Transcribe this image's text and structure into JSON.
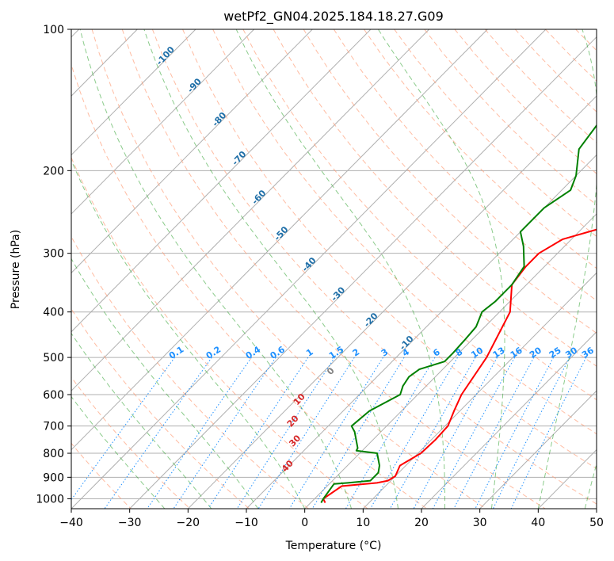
{
  "chart_data": {
    "type": "line",
    "title": "wetPf2_GN04.2025.184.18.27.G09",
    "xlabel": "Temperature (°C)",
    "ylabel": "Pressure (hPa)",
    "xlim": [
      -40,
      50
    ],
    "ylim": [
      1050,
      100
    ],
    "y_scale": "log",
    "x_ticks": [
      -40,
      -30,
      -20,
      -10,
      0,
      10,
      20,
      30,
      40,
      50
    ],
    "y_ticks": [
      100,
      200,
      300,
      400,
      500,
      600,
      700,
      800,
      900,
      1000
    ],
    "grid": true,
    "series": [
      {
        "name": "",
        "color": "#ff0000",
        "points": [
          [
            2.5,
            1020
          ],
          [
            1.5,
            1000
          ],
          [
            2.5,
            940
          ],
          [
            8,
            925
          ],
          [
            9.5,
            915
          ],
          [
            10,
            895
          ],
          [
            9,
            850
          ],
          [
            10.5,
            800
          ],
          [
            10.7,
            750
          ],
          [
            10.5,
            700
          ],
          [
            9,
            650
          ],
          [
            7.5,
            600
          ],
          [
            5.5,
            500
          ],
          [
            1.8,
            400
          ],
          [
            -2.5,
            350
          ],
          [
            -3.2,
            320
          ],
          [
            -3.2,
            300
          ],
          [
            -1.5,
            280
          ],
          [
            5,
            260
          ],
          [
            10,
            240
          ],
          [
            14,
            220
          ],
          [
            18,
            200
          ],
          [
            25,
            170
          ],
          [
            32,
            140
          ],
          [
            38,
            120
          ],
          [
            44,
            100
          ]
        ]
      },
      {
        "name": "",
        "color": "#008000",
        "points": [
          [
            1.8,
            1020
          ],
          [
            1.5,
            1000
          ],
          [
            0.8,
            930
          ],
          [
            3,
            925
          ],
          [
            6.5,
            915
          ],
          [
            6.5,
            880
          ],
          [
            5.5,
            850
          ],
          [
            3,
            800
          ],
          [
            -1,
            790
          ],
          [
            -1.2,
            780
          ],
          [
            -4.5,
            720
          ],
          [
            -6,
            700
          ],
          [
            -5.5,
            650
          ],
          [
            -3,
            600
          ],
          [
            -4,
            575
          ],
          [
            -4.5,
            550
          ],
          [
            -4,
            530
          ],
          [
            -1,
            510
          ],
          [
            -1,
            490
          ],
          [
            -1.2,
            460
          ],
          [
            -1.5,
            430
          ],
          [
            -3,
            400
          ],
          [
            -2.5,
            380
          ],
          [
            -2.5,
            350
          ],
          [
            -3.5,
            320
          ],
          [
            -7,
            290
          ],
          [
            -10,
            270
          ],
          [
            -10,
            240
          ],
          [
            -8.5,
            220
          ],
          [
            -10,
            205
          ],
          [
            -14,
            180
          ],
          [
            -15,
            160
          ],
          [
            -14,
            145
          ],
          [
            -12.5,
            135
          ],
          [
            -8,
            120
          ],
          [
            -3,
            105
          ],
          [
            0,
            100
          ]
        ]
      }
    ],
    "isotherm_step": 10,
    "dry_adiabats_theta_K": [
      240,
      250,
      260,
      270,
      280,
      290,
      300,
      310,
      320,
      330,
      340,
      350,
      360,
      370,
      380,
      390,
      400,
      410,
      420,
      430,
      440,
      450,
      460
    ],
    "mixing_ratio_g_per_kg": [
      0.1,
      0.2,
      0.4,
      0.6,
      1,
      1.5,
      2,
      3,
      4,
      6,
      8,
      10,
      13,
      16,
      20,
      25,
      30,
      36
    ],
    "moist_adiabat_start_temps_C": [
      -24,
      -16,
      -8,
      0,
      8,
      16,
      24,
      32,
      40,
      48
    ],
    "annotations": {
      "dry_adiabat_labels": [
        -100,
        -90,
        -80,
        -70,
        -60,
        -50,
        -40,
        -30,
        -20,
        -10
      ],
      "moist_adiabat_labels": [
        0,
        10,
        20,
        30,
        40
      ],
      "mixing_ratio_labels": [
        "0.1",
        "0.2",
        "0.4",
        "0.6",
        "1",
        "1.5",
        "2",
        "3",
        "4",
        "6",
        "8",
        "10",
        "13",
        "16",
        "20",
        "25",
        "30",
        "36"
      ]
    },
    "colors": {
      "isotherm": "#b0b0b0",
      "isobar": "#b0b0b0",
      "dry_adiabat": "#ffa07a",
      "moist_adiabat": "#2ca02c",
      "mixing_ratio": "#1e90ff",
      "dry_label": "#1f6fa8",
      "moist_label": "#d62728",
      "mixing_label": "#1e90ff",
      "zero_label": "#808080"
    }
  }
}
